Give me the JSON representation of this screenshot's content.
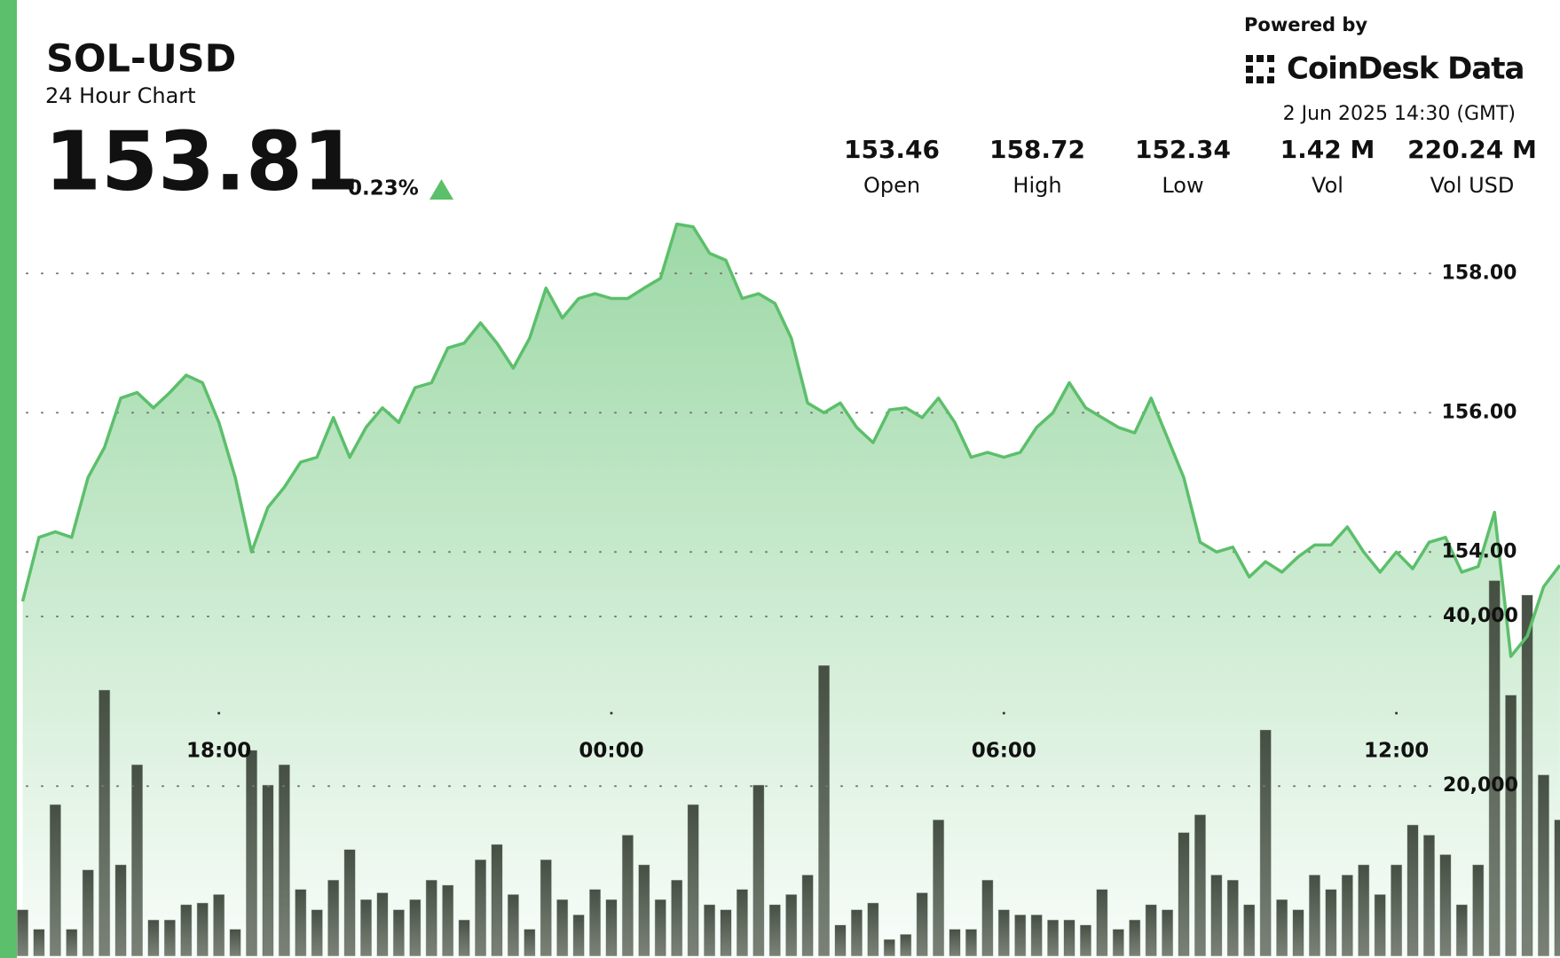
{
  "header": {
    "symbol": "SOL-USD",
    "subtitle": "24 Hour Chart",
    "price": "153.81",
    "change": "0.23%",
    "stats": [
      {
        "value": "153.46",
        "label": "Open"
      },
      {
        "value": "158.72",
        "label": "High"
      },
      {
        "value": "152.34",
        "label": "Low"
      },
      {
        "value": "1.42 M",
        "label": "Vol"
      },
      {
        "value": "220.24 M",
        "label": "Vol USD"
      }
    ],
    "powered_by": "Powered by",
    "brand": "CoinDesk Data",
    "timestamp": "2 Jun 2025 14:30 (GMT)"
  },
  "chart_data": {
    "type": "line",
    "categories": [
      null,
      null,
      null,
      null,
      null,
      null,
      null,
      null,
      null,
      null,
      null,
      null,
      "18:00",
      null,
      null,
      null,
      null,
      null,
      null,
      null,
      null,
      null,
      null,
      null,
      null,
      null,
      null,
      null,
      null,
      null,
      null,
      null,
      null,
      null,
      null,
      null,
      "00:00",
      null,
      null,
      null,
      null,
      null,
      null,
      null,
      null,
      null,
      null,
      null,
      null,
      null,
      null,
      null,
      null,
      null,
      null,
      null,
      null,
      null,
      null,
      null,
      "06:00",
      null,
      null,
      null,
      null,
      null,
      null,
      null,
      null,
      null,
      null,
      null,
      null,
      null,
      null,
      null,
      null,
      null,
      null,
      null,
      null,
      null,
      null,
      null,
      "12:00",
      null,
      null,
      null,
      null,
      null,
      null,
      null,
      null,
      null,
      null
    ],
    "series": [
      {
        "color": "#5cbf6b",
        "values": [
          153.29,
          154.21,
          154.29,
          154.21,
          155.07,
          155.5,
          156.21,
          156.29,
          156.07,
          156.29,
          156.54,
          156.43,
          155.86,
          155.07,
          154.0,
          154.64,
          154.93,
          155.29,
          155.36,
          155.93,
          155.36,
          155.79,
          156.07,
          155.86,
          156.36,
          156.43,
          156.93,
          157.0,
          157.29,
          157.0,
          156.64,
          157.07,
          157.79,
          157.36,
          157.64,
          157.71,
          157.64,
          157.64,
          157.79,
          157.93,
          158.71,
          158.67,
          158.29,
          158.19,
          157.64,
          157.71,
          157.57,
          157.07,
          156.14,
          156.0,
          156.14,
          155.79,
          155.57,
          156.04,
          156.07,
          155.93,
          156.21,
          155.86,
          155.36,
          155.43,
          155.36,
          155.43,
          155.79,
          156.0,
          156.43,
          156.07,
          155.93,
          155.79,
          155.71,
          156.21,
          155.64,
          155.07,
          154.14,
          154.0,
          154.07,
          153.64,
          153.86,
          153.71,
          153.93,
          154.1,
          154.1,
          154.36,
          154.0,
          153.71,
          154.0,
          153.76,
          154.14,
          154.21,
          153.71,
          153.79,
          154.57,
          152.5,
          152.79,
          153.5,
          153.81
        ]
      },
      {
        "type": "bar",
        "axis": "y2",
        "color": "#4b5548",
        "values": [
          5400,
          3100,
          17800,
          3100,
          10100,
          31300,
          10700,
          22500,
          4200,
          4200,
          6000,
          6200,
          7200,
          3100,
          24200,
          20100,
          22500,
          7800,
          5400,
          8900,
          12500,
          6600,
          7400,
          5400,
          6600,
          8900,
          8300,
          4200,
          11300,
          13100,
          7200,
          3100,
          11300,
          6600,
          4800,
          7800,
          6600,
          14200,
          10700,
          6600,
          8900,
          17800,
          6000,
          5400,
          7800,
          20100,
          6000,
          7200,
          9500,
          34200,
          3600,
          5400,
          6200,
          1900,
          2500,
          7400,
          16000,
          3100,
          3100,
          8900,
          5400,
          4800,
          4800,
          4200,
          4200,
          3600,
          7800,
          3100,
          4200,
          6000,
          5400,
          14500,
          16600,
          9500,
          8900,
          6000,
          26600,
          6600,
          5400,
          9500,
          7800,
          9500,
          10700,
          7200,
          10700,
          15400,
          14200,
          11900,
          6000,
          10700,
          44200,
          30700,
          42500,
          21300,
          16000
        ]
      }
    ],
    "ylim": [
      148.2,
      158.8
    ],
    "yticks": [
      {
        "value": 154,
        "label": "154.00"
      },
      {
        "value": 156,
        "label": "156.00"
      },
      {
        "value": 158,
        "label": "158.00"
      }
    ],
    "y2lim": [
      0,
      87000
    ],
    "y2ticks": [
      {
        "value": 20000,
        "label": "20,000"
      },
      {
        "value": 40000,
        "label": "40,000"
      }
    ],
    "grid": true
  }
}
